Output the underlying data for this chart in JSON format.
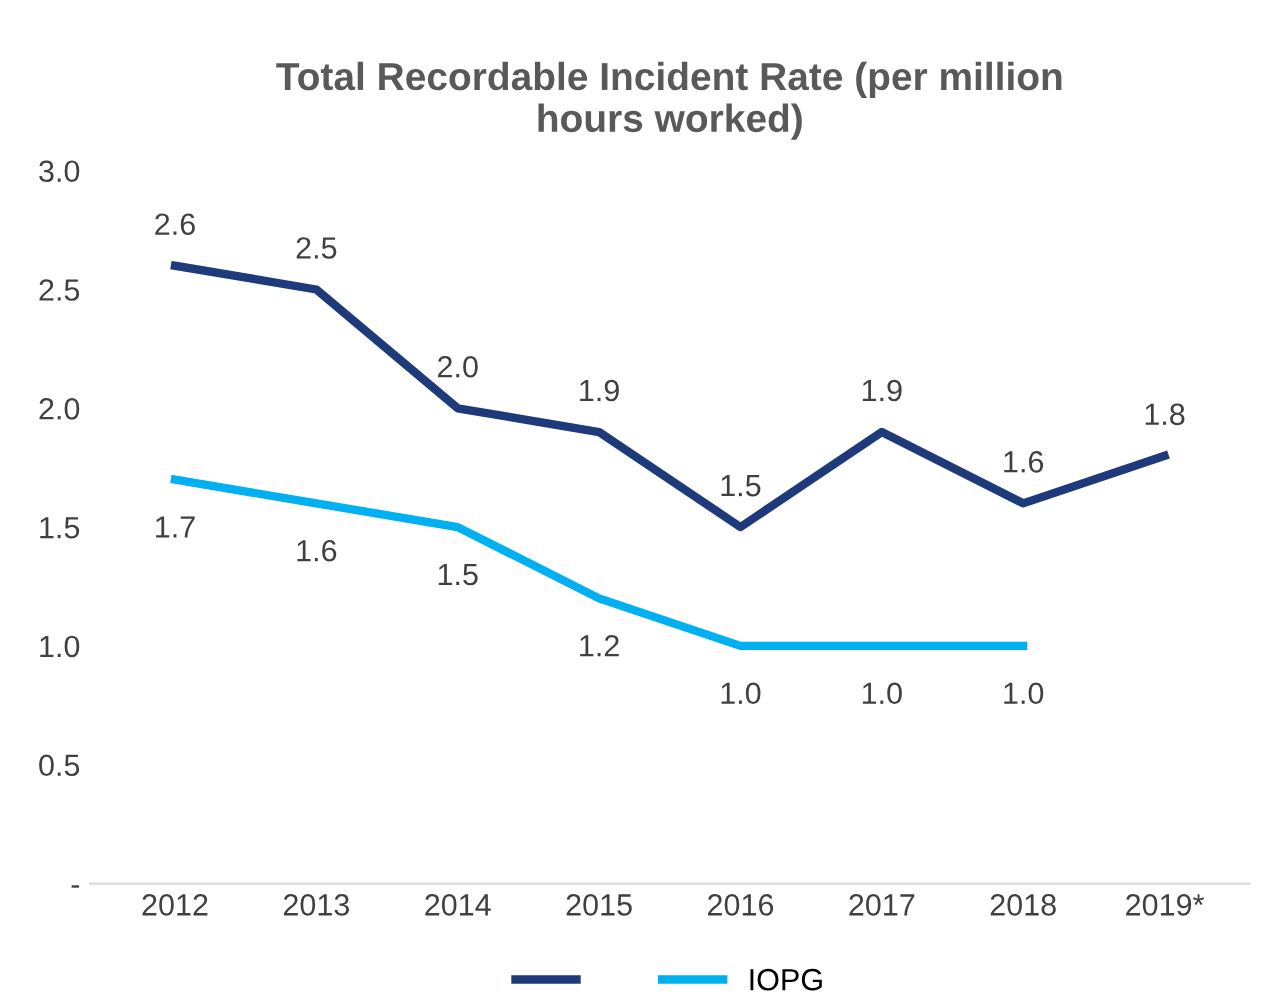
{
  "chart_data": {
    "type": "line",
    "title": "Total Recordable Incident Rate (per million\nhours worked)",
    "categories": [
      "2012",
      "2013",
      "2014",
      "2015",
      "2016",
      "2017",
      "2018",
      "2019*"
    ],
    "series": [
      {
        "color": "#1f3a7a",
        "values": [
          2.6,
          2.5,
          2.0,
          1.9,
          1.5,
          1.9,
          1.6,
          1.8
        ],
        "value_labels": [
          "2.6",
          "2.5",
          "2.0",
          "1.9",
          "1.5",
          "1.9",
          "1.6",
          "1.8"
        ]
      },
      {
        "name": "IOPG",
        "color": "#00b0f0",
        "values": [
          1.7,
          1.6,
          1.5,
          1.2,
          1.0,
          1.0,
          1.0,
          null
        ],
        "value_labels": [
          "1.7",
          "1.6",
          "1.5",
          "1.2",
          "1.0",
          "1.0",
          "1.0",
          null
        ]
      }
    ],
    "ylim": [
      0,
      3.0
    ],
    "yticks": [
      {
        "value": 0,
        "label": "-"
      },
      {
        "value": 0.5,
        "label": "0.5"
      },
      {
        "value": 1.0,
        "label": "1.0"
      },
      {
        "value": 1.5,
        "label": "1.5"
      },
      {
        "value": 2.0,
        "label": "2.0"
      },
      {
        "value": 2.5,
        "label": "2.5"
      },
      {
        "value": 3.0,
        "label": "3.0"
      }
    ],
    "legend": "bottom",
    "grid": false,
    "marker": "none",
    "line_style": "solid"
  }
}
